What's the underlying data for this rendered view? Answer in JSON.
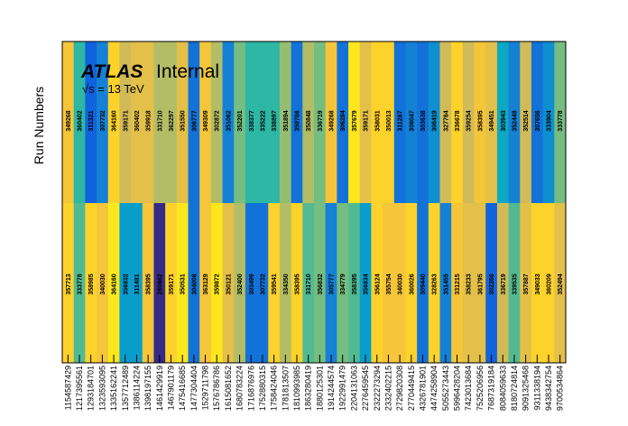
{
  "chart_data": {
    "type": "heatmap",
    "ylabel": "Run Numbers",
    "xlabel": "",
    "annotation": {
      "atlas": "ATLAS",
      "status": "Internal",
      "energy": "√s = 13 TeV"
    },
    "x": [
      "1154587429",
      "1217395561",
      "1293184701",
      "1323593095",
      "1335162241",
      "1357712489",
      "1386114224",
      "1398197155",
      "1461429919",
      "1467901179",
      "1475416685",
      "1477304404",
      "1529711798",
      "1576786786",
      "1615081652",
      "1680783224",
      "1716876976",
      "1752880315",
      "1758424046",
      "1781813507",
      "1810993985",
      "1863280419",
      "1880125301",
      "1914244574",
      "1922991479",
      "2204131063",
      "2276459545",
      "2322273294",
      "2332402215",
      "2729820308",
      "2770449415",
      "4326781901",
      "4474258904",
      "5055273443",
      "5996428204",
      "7423013684",
      "7525206956",
      "7687319184",
      "8084059633",
      "8180724814",
      "9091325468",
      "9311338194",
      "9438342754",
      "9700534864"
    ],
    "rows": [
      {
        "run_numbers": [
          "349268",
          "360402",
          "311321",
          "307732",
          "364160",
          "359171",
          "360402",
          "359918",
          "331710",
          "362297",
          "351550",
          "306777",
          "349309",
          "302872",
          "351062",
          "352201",
          "338377",
          "335222",
          "338897",
          "351894",
          "359766",
          "350848",
          "336719",
          "349268",
          "306284",
          "357679",
          "359171",
          "358031",
          "350013",
          "311287",
          "308047",
          "303638",
          "306419",
          "327764",
          "336678",
          "359254",
          "358395",
          "349451",
          "303943",
          "352448",
          "352514",
          "307656",
          "333904",
          "333778"
        ],
        "values": [
          1.5,
          5.0,
          8.5,
          7.5,
          1.0,
          2.5,
          2.0,
          2.0,
          3.0,
          3.0,
          2.0,
          8.0,
          1.5,
          3.0,
          7.5,
          4.0,
          5.0,
          5.0,
          5.0,
          3.5,
          8.0,
          3.0,
          4.0,
          1.5,
          8.0,
          0.5,
          2.0,
          1.0,
          1.0,
          8.0,
          7.5,
          8.0,
          7.0,
          2.5,
          1.0,
          2.5,
          1.5,
          2.0,
          6.0,
          7.5,
          2.5,
          8.0,
          7.0,
          4.0
        ]
      },
      {
        "run_numbers": [
          "357713",
          "333778",
          "358985",
          "340030",
          "364160",
          "356832",
          "311481",
          "358395",
          "280862",
          "359171",
          "350531",
          "304008",
          "363129",
          "359872",
          "350121",
          "352400",
          "303499",
          "307732",
          "359541",
          "334350",
          "358395",
          "331710",
          "356832",
          "305777",
          "334779",
          "358395",
          "356834",
          "356124",
          "355754",
          "340030",
          "360026",
          "309440",
          "328263",
          "351455",
          "331215",
          "358233",
          "361795",
          "302266",
          "336719",
          "339535",
          "357887",
          "349033",
          "360209",
          "352494"
        ],
        "values": [
          1.0,
          4.5,
          1.0,
          1.5,
          0.5,
          6.5,
          6.5,
          1.5,
          10.0,
          1.0,
          0.5,
          8.0,
          1.5,
          0.5,
          2.0,
          3.0,
          8.0,
          8.0,
          1.0,
          3.0,
          1.0,
          4.5,
          4.0,
          7.5,
          4.0,
          4.5,
          6.5,
          1.0,
          1.5,
          1.5,
          1.0,
          8.0,
          1.0,
          7.5,
          1.5,
          2.0,
          2.0,
          8.5,
          2.5,
          4.5,
          2.0,
          1.0,
          1.0,
          2.0
        ]
      }
    ],
    "colorscale": [
      "#352a87",
      "#0f5cdd",
      "#1481d6",
      "#06a4ca",
      "#2eb7a4",
      "#87bf77",
      "#d1bb59",
      "#fec832",
      "#f9fb0e"
    ],
    "value_range": [
      0,
      10
    ]
  }
}
